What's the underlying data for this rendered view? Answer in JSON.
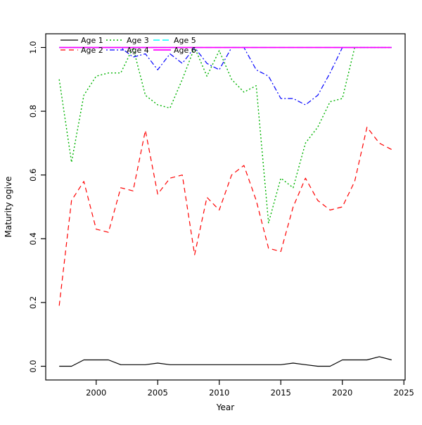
{
  "figure": {
    "background": "#ffffff",
    "axis_color": "#000000"
  },
  "chart_data": {
    "type": "line",
    "title": "",
    "xlabel": "Year",
    "ylabel": "Maturity ogive",
    "xlim": [
      1997,
      2024
    ],
    "ylim": [
      0.0,
      1.0
    ],
    "xticks": [
      2000,
      2005,
      2010,
      2015,
      2020,
      2025
    ],
    "ytick_labels": [
      "0.0",
      "0.2",
      "0.4",
      "0.6",
      "0.8",
      "1.0"
    ],
    "ytick_values": [
      0.0,
      0.2,
      0.4,
      0.6,
      0.8,
      1.0
    ],
    "grid": false,
    "legend": {
      "position": "topleft",
      "entries": [
        "Age 1",
        "Age 2",
        "Age 3",
        "Age 4",
        "Age 5",
        "Age 6"
      ]
    },
    "x": [
      1997,
      1998,
      1999,
      2000,
      2001,
      2002,
      2003,
      2004,
      2005,
      2006,
      2007,
      2008,
      2009,
      2010,
      2011,
      2012,
      2013,
      2014,
      2015,
      2016,
      2017,
      2018,
      2019,
      2020,
      2021,
      2022,
      2023,
      2024
    ],
    "series": [
      {
        "name": "Age 1",
        "color": "#000000",
        "linetype": "solid",
        "width": 1.2,
        "values": [
          0.0,
          0.0,
          0.02,
          0.02,
          0.02,
          0.005,
          0.005,
          0.005,
          0.01,
          0.005,
          0.005,
          0.005,
          0.005,
          0.005,
          0.005,
          0.005,
          0.005,
          0.005,
          0.005,
          0.01,
          0.005,
          0.0,
          0.0,
          0.02,
          0.02,
          0.02,
          0.03,
          0.02
        ]
      },
      {
        "name": "Age 2",
        "color": "#ff0000",
        "linetype": "dashed",
        "width": 1.2,
        "values": [
          0.19,
          0.52,
          0.58,
          0.43,
          0.42,
          0.56,
          0.55,
          0.74,
          0.54,
          0.59,
          0.6,
          0.35,
          0.53,
          0.49,
          0.6,
          0.63,
          0.52,
          0.37,
          0.36,
          0.5,
          0.59,
          0.52,
          0.49,
          0.5,
          0.58,
          0.75,
          0.7,
          0.68
        ]
      },
      {
        "name": "Age 3",
        "color": "#00b300",
        "linetype": "dotted",
        "width": 1.4,
        "values": [
          0.9,
          0.64,
          0.85,
          0.91,
          0.92,
          0.92,
          1.0,
          0.85,
          0.82,
          0.81,
          0.9,
          1.0,
          0.91,
          0.99,
          0.9,
          0.86,
          0.88,
          0.45,
          0.59,
          0.56,
          0.7,
          0.75,
          0.83,
          0.84,
          1.0,
          1.0,
          1.0,
          1.0
        ]
      },
      {
        "name": "Age 4",
        "color": "#0000ff",
        "linetype": "dotdash",
        "width": 1.2,
        "values": [
          1.0,
          1.0,
          1.0,
          1.0,
          1.0,
          1.0,
          0.97,
          0.98,
          0.93,
          0.98,
          0.95,
          1.0,
          0.95,
          0.93,
          1.0,
          1.0,
          0.93,
          0.91,
          0.84,
          0.84,
          0.82,
          0.85,
          0.92,
          1.0,
          1.0,
          1.0,
          1.0,
          1.0
        ]
      },
      {
        "name": "Age 5",
        "color": "#00ffff",
        "linetype": "longdash",
        "width": 1.4,
        "values": [
          1.0,
          1.0,
          1.0,
          1.0,
          1.0,
          1.0,
          1.0,
          1.0,
          1.0,
          1.0,
          1.0,
          1.0,
          1.0,
          1.0,
          1.0,
          1.0,
          1.0,
          1.0,
          1.0,
          1.0,
          1.0,
          1.0,
          1.0,
          1.0,
          1.0,
          1.0,
          1.0,
          1.0
        ]
      },
      {
        "name": "Age 6",
        "color": "#ff00ff",
        "linetype": "solid",
        "width": 1.8,
        "values": [
          1.0,
          1.0,
          1.0,
          1.0,
          1.0,
          1.0,
          1.0,
          1.0,
          1.0,
          1.0,
          1.0,
          1.0,
          1.0,
          1.0,
          1.0,
          1.0,
          1.0,
          1.0,
          1.0,
          1.0,
          1.0,
          1.0,
          1.0,
          1.0,
          1.0,
          1.0,
          1.0,
          1.0
        ]
      }
    ]
  }
}
